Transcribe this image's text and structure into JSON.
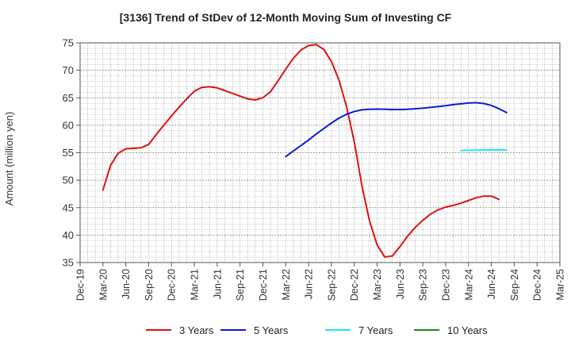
{
  "chart_data": {
    "type": "line",
    "title": "[3136]  Trend of StDev of 12-Month Moving Sum of Investing CF",
    "ylabel": "Amount (million yen)",
    "xlabel": "",
    "ylim": [
      35,
      75
    ],
    "yticks": [
      35,
      40,
      45,
      50,
      55,
      60,
      65,
      70,
      75
    ],
    "xtick_labels": [
      "Dec-19",
      "Mar-20",
      "Jun-20",
      "Sep-20",
      "Dec-20",
      "Mar-21",
      "Jun-21",
      "Sep-21",
      "Dec-21",
      "Mar-22",
      "Jun-22",
      "Sep-22",
      "Dec-22",
      "Mar-23",
      "Jun-23",
      "Sep-23",
      "Dec-23",
      "Mar-24",
      "Jun-24",
      "Sep-24",
      "Dec-24",
      "Mar-25"
    ],
    "grid": true,
    "legend_position": "bottom",
    "series": [
      {
        "name": "3 Years",
        "color": "#dd1111",
        "points": [
          [
            "Mar-20",
            48.2
          ],
          [
            "Apr-20",
            52.7
          ],
          [
            "May-20",
            54.9
          ],
          [
            "Jun-20",
            55.7
          ],
          [
            "Jul-20",
            55.8
          ],
          [
            "Aug-20",
            55.9
          ],
          [
            "Sep-20",
            56.5
          ],
          [
            "Oct-20",
            58.3
          ],
          [
            "Nov-20",
            60.0
          ],
          [
            "Dec-20",
            61.7
          ],
          [
            "Jan-21",
            63.3
          ],
          [
            "Feb-21",
            64.8
          ],
          [
            "Mar-21",
            66.2
          ],
          [
            "Apr-21",
            66.9
          ],
          [
            "May-21",
            67.0
          ],
          [
            "Jun-21",
            66.8
          ],
          [
            "Jul-21",
            66.3
          ],
          [
            "Aug-21",
            65.8
          ],
          [
            "Sep-21",
            65.3
          ],
          [
            "Oct-21",
            64.8
          ],
          [
            "Nov-21",
            64.6
          ],
          [
            "Dec-21",
            65.0
          ],
          [
            "Jan-22",
            66.1
          ],
          [
            "Feb-22",
            68.1
          ],
          [
            "Mar-22",
            70.2
          ],
          [
            "Apr-22",
            72.2
          ],
          [
            "May-22",
            73.7
          ],
          [
            "Jun-22",
            74.5
          ],
          [
            "Jul-22",
            74.7
          ],
          [
            "Aug-22",
            73.8
          ],
          [
            "Sep-22",
            71.6
          ],
          [
            "Oct-22",
            68.2
          ],
          [
            "Nov-22",
            63.3
          ],
          [
            "Dec-22",
            57.0
          ],
          [
            "Jan-23",
            49.0
          ],
          [
            "Feb-23",
            42.6
          ],
          [
            "Mar-23",
            38.2
          ],
          [
            "Apr-23",
            36.0
          ],
          [
            "May-23",
            36.2
          ],
          [
            "Jun-23",
            37.9
          ],
          [
            "Jul-23",
            39.8
          ],
          [
            "Aug-23",
            41.4
          ],
          [
            "Sep-23",
            42.7
          ],
          [
            "Oct-23",
            43.8
          ],
          [
            "Nov-23",
            44.6
          ],
          [
            "Dec-23",
            45.1
          ],
          [
            "Jan-24",
            45.4
          ],
          [
            "Feb-24",
            45.8
          ],
          [
            "Mar-24",
            46.3
          ],
          [
            "Apr-24",
            46.8
          ],
          [
            "May-24",
            47.1
          ],
          [
            "Jun-24",
            47.1
          ],
          [
            "Jul-24",
            46.5
          ]
        ]
      },
      {
        "name": "5 Years",
        "color": "#0a1ed0",
        "points": [
          [
            "Mar-22",
            54.3
          ],
          [
            "Apr-22",
            55.3
          ],
          [
            "May-22",
            56.3
          ],
          [
            "Jun-22",
            57.3
          ],
          [
            "Jul-22",
            58.4
          ],
          [
            "Aug-22",
            59.4
          ],
          [
            "Sep-22",
            60.4
          ],
          [
            "Oct-22",
            61.3
          ],
          [
            "Nov-22",
            62.0
          ],
          [
            "Dec-22",
            62.5
          ],
          [
            "Jan-23",
            62.8
          ],
          [
            "Feb-23",
            62.9
          ],
          [
            "Mar-23",
            62.95
          ],
          [
            "Apr-23",
            62.9
          ],
          [
            "May-23",
            62.85
          ],
          [
            "Jun-23",
            62.85
          ],
          [
            "Jul-23",
            62.9
          ],
          [
            "Aug-23",
            63.0
          ],
          [
            "Sep-23",
            63.1
          ],
          [
            "Oct-23",
            63.25
          ],
          [
            "Nov-23",
            63.4
          ],
          [
            "Dec-23",
            63.55
          ],
          [
            "Jan-24",
            63.75
          ],
          [
            "Feb-24",
            63.9
          ],
          [
            "Mar-24",
            64.05
          ],
          [
            "Apr-24",
            64.1
          ],
          [
            "May-24",
            63.95
          ],
          [
            "Jun-24",
            63.6
          ],
          [
            "Jul-24",
            63.0
          ],
          [
            "Aug-24",
            62.3
          ]
        ]
      },
      {
        "name": "7 Years",
        "color": "#22e6f0",
        "points": [
          [
            "Feb-24",
            55.4
          ],
          [
            "Mar-24",
            55.45
          ],
          [
            "Apr-24",
            55.45
          ],
          [
            "May-24",
            55.5
          ],
          [
            "Jun-24",
            55.5
          ],
          [
            "Jul-24",
            55.5
          ],
          [
            "Aug-24",
            55.5
          ]
        ]
      },
      {
        "name": "10 Years",
        "color": "#1e8a1e",
        "points": []
      }
    ]
  }
}
